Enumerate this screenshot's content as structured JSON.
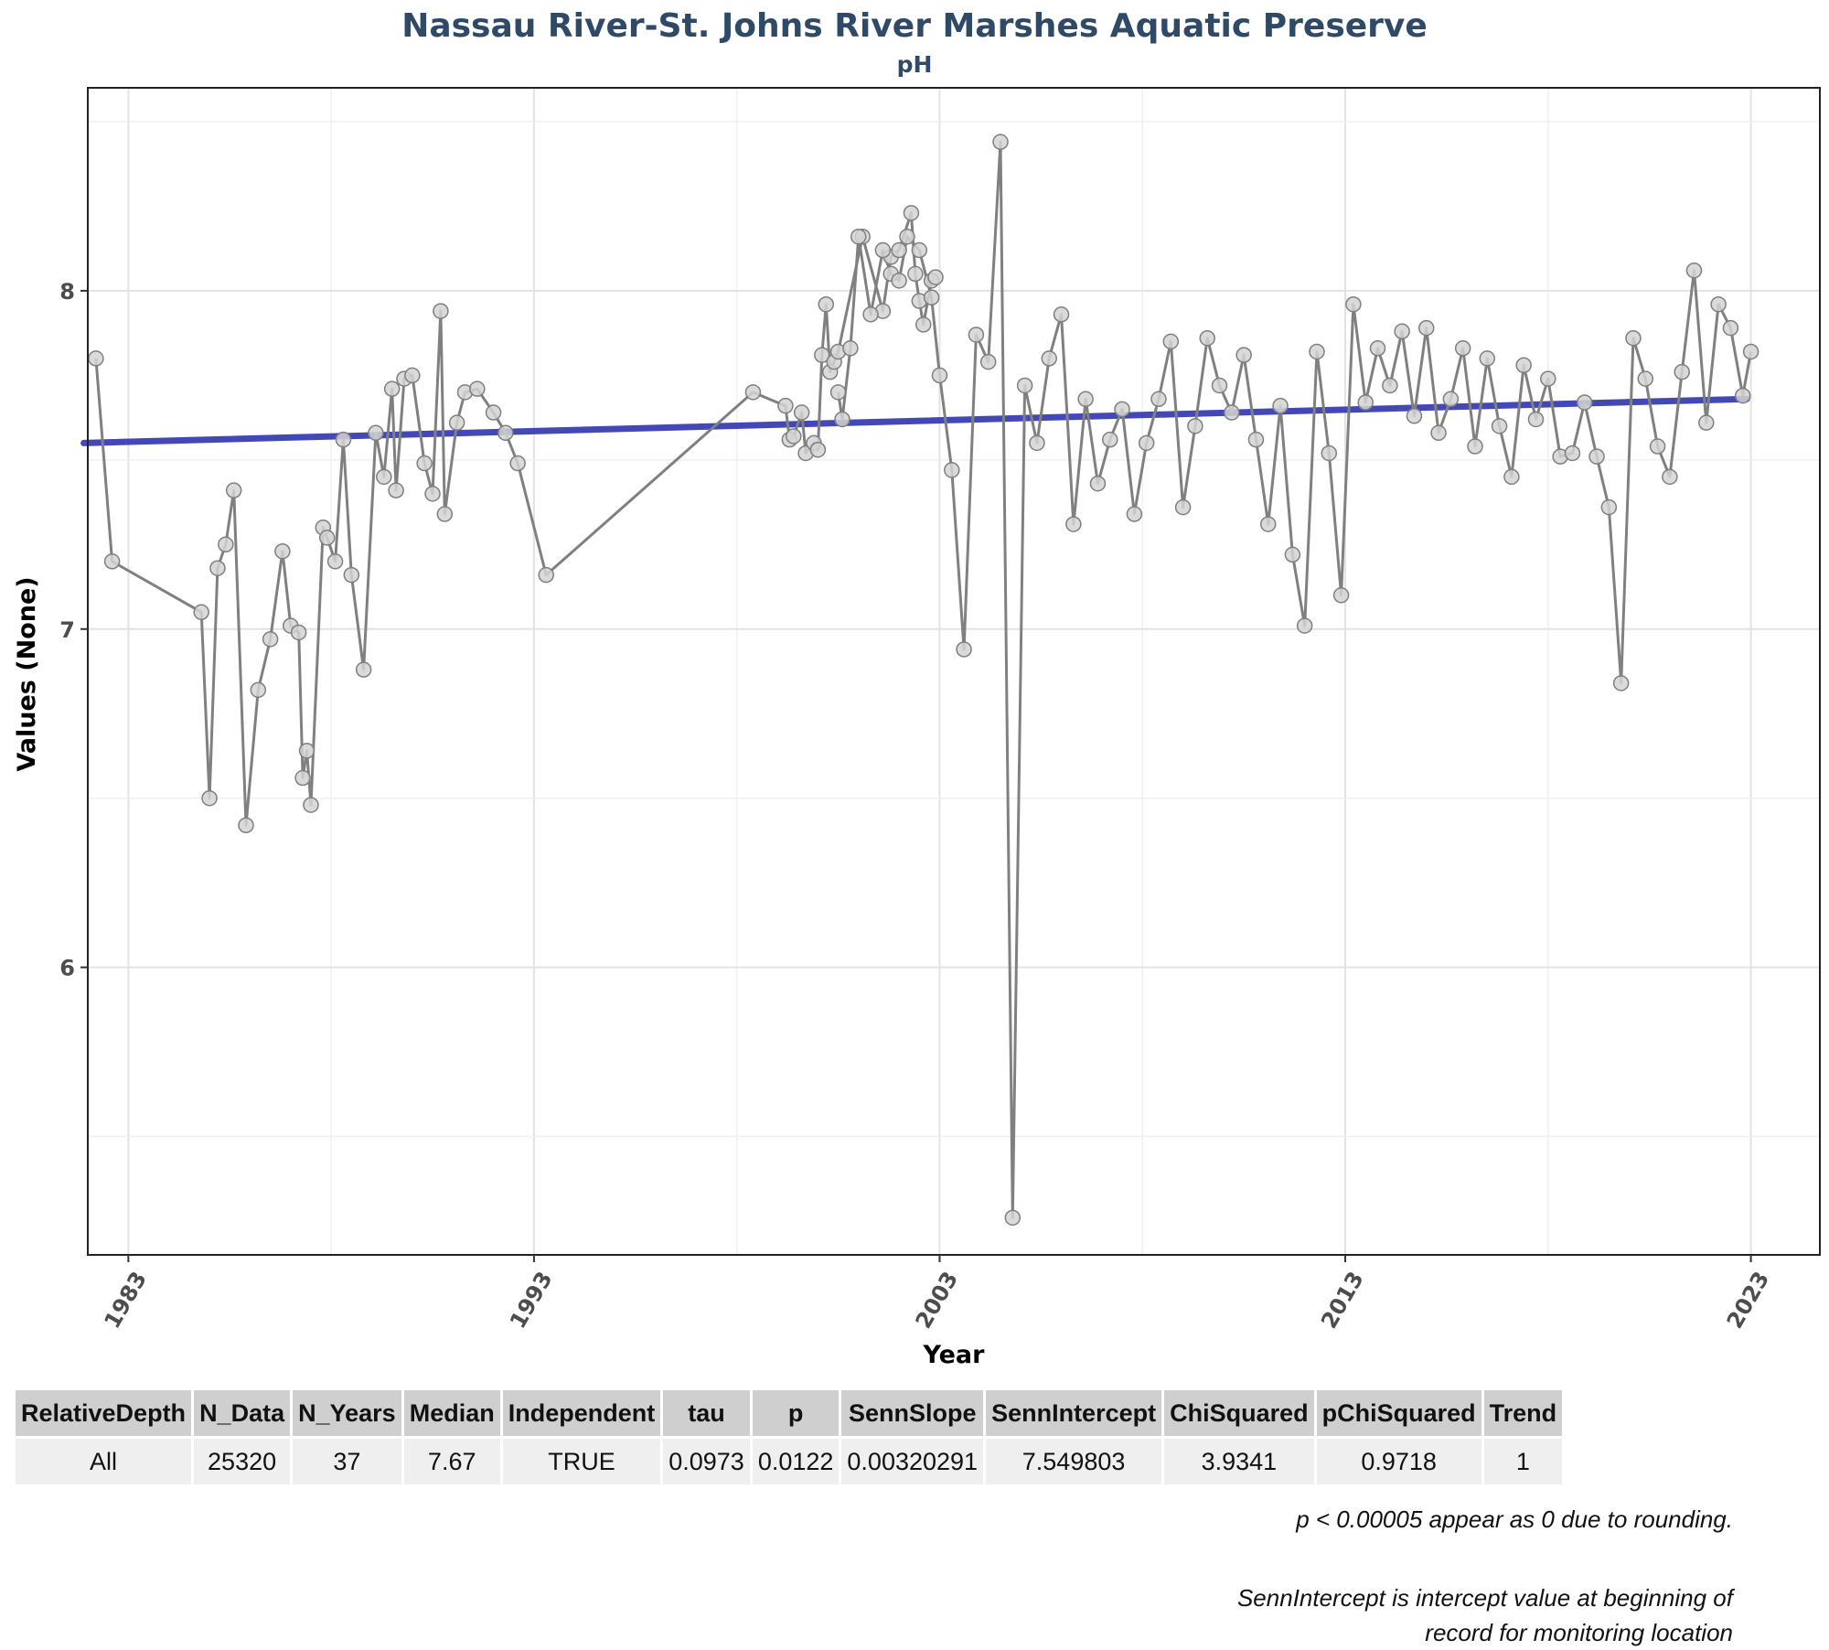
{
  "chart_data": {
    "type": "line",
    "title": "Nassau River-St. Johns River Marshes Aquatic Preserve",
    "subtitle": "pH",
    "xlabel": "Year",
    "ylabel": "Values (None)",
    "xlim": [
      1982.0,
      2024.7
    ],
    "ylim": [
      5.15,
      8.6
    ],
    "x_ticks": [
      1983,
      1993,
      2003,
      2013,
      2023
    ],
    "y_ticks": [
      6,
      7,
      8
    ],
    "grid": true,
    "trend_line": {
      "x": [
        1981.9,
        2022.9
      ],
      "y": [
        7.55,
        7.68
      ],
      "color": "#3a3fb3"
    },
    "series": [
      {
        "line_color": "#808080",
        "marker_fill": "#d3d3d3",
        "x": [
          1982.2,
          1982.6,
          1984.8,
          1985.0,
          1985.2,
          1985.4,
          1985.6,
          1985.9,
          1986.2,
          1986.5,
          1986.8,
          1987.0,
          1987.2,
          1987.3,
          1987.4,
          1987.5,
          1987.8,
          1987.9,
          1988.1,
          1988.3,
          1988.5,
          1988.8,
          1989.1,
          1989.3,
          1989.5,
          1989.6,
          1989.8,
          1990.0,
          1990.3,
          1990.5,
          1990.7,
          1990.8,
          1991.1,
          1991.3,
          1991.6,
          1992.0,
          1992.3,
          1992.6,
          1993.3,
          1998.4,
          1999.2,
          1999.3,
          1999.4,
          1999.6,
          1999.7,
          1999.9,
          2000.0,
          2000.1,
          2000.2,
          2000.3,
          2000.4,
          2000.5,
          2001.1,
          2001.6,
          2001.8,
          2002.0,
          2002.3,
          2002.4,
          2002.5,
          2002.6,
          2002.8,
          2002.9
        ],
        "y": [
          7.8,
          7.2,
          7.05,
          6.5,
          7.18,
          7.25,
          7.41,
          6.42,
          6.82,
          6.97,
          7.23,
          7.01,
          6.99,
          6.56,
          6.64,
          6.48,
          7.3,
          7.27,
          7.2,
          7.56,
          7.16,
          6.88,
          7.58,
          7.45,
          7.71,
          7.41,
          7.74,
          7.75,
          7.49,
          7.4,
          7.94,
          7.34,
          7.61,
          7.7,
          7.71,
          7.64,
          7.58,
          7.49,
          7.16,
          7.7,
          7.66,
          7.56,
          7.57,
          7.64,
          7.52,
          7.55,
          7.53,
          7.81,
          7.96,
          7.76,
          7.79,
          7.82,
          8.16,
          7.94,
          8.1,
          8.12,
          8.23,
          8.05,
          7.97,
          7.9,
          8.03,
          8.04
        ]
      },
      {
        "line_color": "#808080",
        "marker_fill": "#d3d3d3",
        "x": [
          2000.5,
          2000.6,
          2000.8,
          2001.0,
          2001.3,
          2001.6,
          2001.8,
          2002.0,
          2002.2,
          2002.5,
          2002.8,
          2003.0,
          2003.3,
          2003.6,
          2003.9,
          2004.2,
          2004.5,
          2004.8,
          2005.1,
          2005.4,
          2005.7,
          2006.0,
          2006.3,
          2006.6,
          2006.9,
          2007.2,
          2007.5,
          2007.8,
          2008.1,
          2008.4,
          2008.7,
          2009.0,
          2009.3,
          2009.6,
          2009.9,
          2010.2,
          2010.5,
          2010.8,
          2011.1,
          2011.4,
          2011.7,
          2012.0,
          2012.3,
          2012.6,
          2012.9,
          2013.2,
          2013.5,
          2013.8,
          2014.1,
          2014.4,
          2014.7,
          2015.0,
          2015.3,
          2015.6,
          2015.9,
          2016.2,
          2016.5,
          2016.8,
          2017.1,
          2017.4,
          2017.7,
          2018.0,
          2018.3,
          2018.6,
          2018.9,
          2019.2,
          2019.5,
          2019.8,
          2020.1,
          2020.4,
          2020.7,
          2021.0,
          2021.3,
          2021.6,
          2021.9,
          2022.2,
          2022.5,
          2022.8,
          2023.0
        ],
        "y": [
          7.7,
          7.62,
          7.83,
          8.16,
          7.93,
          8.12,
          8.05,
          8.03,
          8.16,
          8.12,
          7.98,
          7.75,
          7.47,
          6.94,
          7.87,
          7.79,
          8.44,
          5.26,
          7.72,
          7.55,
          7.8,
          7.93,
          7.31,
          7.68,
          7.43,
          7.56,
          7.65,
          7.34,
          7.55,
          7.68,
          7.85,
          7.36,
          7.6,
          7.86,
          7.72,
          7.64,
          7.81,
          7.56,
          7.31,
          7.66,
          7.22,
          7.01,
          7.82,
          7.52,
          7.1,
          7.96,
          7.67,
          7.83,
          7.72,
          7.88,
          7.63,
          7.89,
          7.58,
          7.68,
          7.83,
          7.54,
          7.8,
          7.6,
          7.45,
          7.78,
          7.62,
          7.74,
          7.51,
          7.52,
          7.67,
          7.51,
          7.36,
          6.84,
          7.86,
          7.74,
          7.54,
          7.45,
          7.76,
          8.06,
          7.61,
          7.96,
          7.89,
          7.69,
          7.82
        ]
      }
    ]
  },
  "table": {
    "headers": [
      "RelativeDepth",
      "N_Data",
      "N_Years",
      "Median",
      "Independent",
      "tau",
      "p",
      "SennSlope",
      "SennIntercept",
      "ChiSquared",
      "pChiSquared",
      "Trend"
    ],
    "rows": [
      [
        "All",
        "25320",
        "37",
        "7.67",
        "TRUE",
        "0.0973",
        "0.0122",
        "0.00320291",
        "7.549803",
        "3.9341",
        "0.9718",
        "1"
      ]
    ]
  },
  "notes": {
    "line1": "p < 0.00005 appear as 0 due to rounding.",
    "line2a": "SennIntercept is intercept value at beginning of",
    "line2b": "record for monitoring location"
  }
}
